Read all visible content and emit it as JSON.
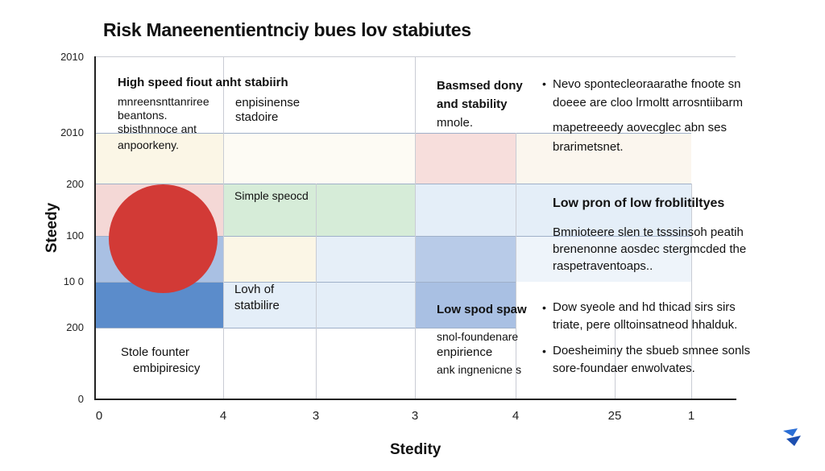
{
  "chart_data": {
    "type": "heatmap",
    "title": "Risk Maneenentientnciy bues lov stabiutes",
    "xlabel": "Stedity",
    "ylabel": "Steedy",
    "x_ticks": [
      "0",
      "4",
      "3",
      "3",
      "4",
      "25",
      "1"
    ],
    "y_ticks": [
      "2010",
      "2010",
      "200",
      "100",
      "10 0",
      "200",
      "0"
    ],
    "grid": true,
    "colors": {
      "red_circle": "#d23a36",
      "light_red": "#f7dedc",
      "light_green": "#d6ecd8",
      "light_blue": "#dfeaf6",
      "mid_blue": "#a9c0e3",
      "dark_blue": "#5b8ccb",
      "cream": "#fbf6e6"
    },
    "annotations": {
      "high_speed": [
        "High speed fiout anht stabiirh",
        "mnreensnttanriree",
        "beantons.",
        "sbisthnnoce ant",
        "anpoorkeny."
      ],
      "enpisinense": [
        "enpisinense",
        "stadoire"
      ],
      "basmsed": [
        "Basmsed dony",
        "and stability"
      ],
      "mnode": "mnole.",
      "simple_speed": "Simple speocd",
      "low_stability": [
        "Lovh of",
        "statbilire"
      ],
      "stole_founter": [
        "Stole founter",
        "embipiresicy"
      ],
      "low_spod": "Low spod spaw",
      "small_founder": [
        "snol-foundenare",
        "enpirience",
        "ank ingnenicne s"
      ]
    },
    "right_notes": [
      {
        "bullet": "•",
        "lines": [
          "Nevo spontecleoraarathe fnoote sn",
          "doeee are cloo lrmoltt arrosntiibarm"
        ]
      },
      {
        "bullet": "",
        "lines": [
          "mapetreeedy aovecglec abn ses",
          "brarimetsnet."
        ]
      },
      {
        "bullet": "",
        "heading": "Low pron of low froblitiltyes",
        "lines": []
      },
      {
        "bullet": "",
        "lines": [
          "Bmnioteere slen te tsssinsoh peatih",
          "brenenonne aosdec stergmcded the",
          "raspetraventoaps.."
        ]
      },
      {
        "bullet": "•",
        "lines": [
          "Dow syeole and hd thicad sirs sirs",
          "triate, pere olltoinsatneod hhalduk."
        ]
      },
      {
        "bullet": "•",
        "lines": [
          "Doesheiminy the sbueb smnee sonls",
          "sore-foundaer enwolvates."
        ]
      }
    ]
  }
}
